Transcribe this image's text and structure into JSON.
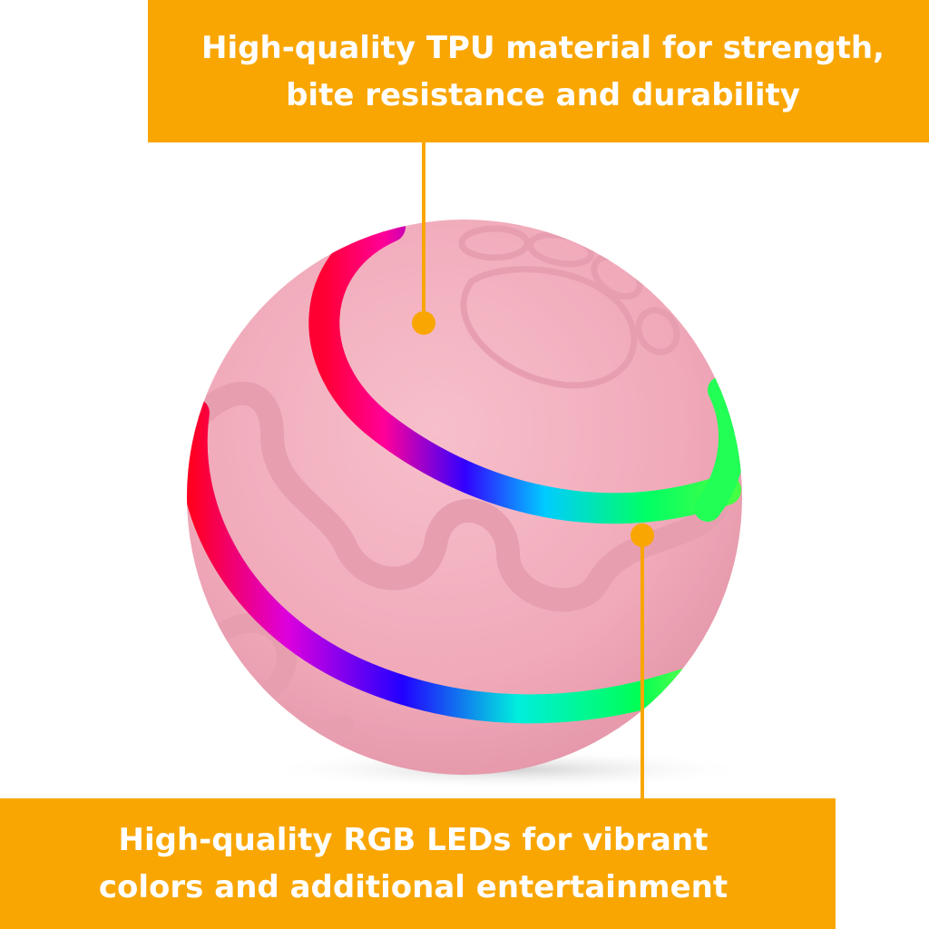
{
  "colors": {
    "accent": "#F9A602",
    "ball": "#F3AEBE",
    "ball_shadow": "#D8D8D8",
    "text": "#FFFFFF"
  },
  "callouts": {
    "top": {
      "line1": "High-quality TPU material for strength,",
      "line2": "bite resistance and durability"
    },
    "bottom": {
      "line1": "High-quality RGB LEDs for vibrant",
      "line2": "colors and additional entertainment"
    }
  }
}
